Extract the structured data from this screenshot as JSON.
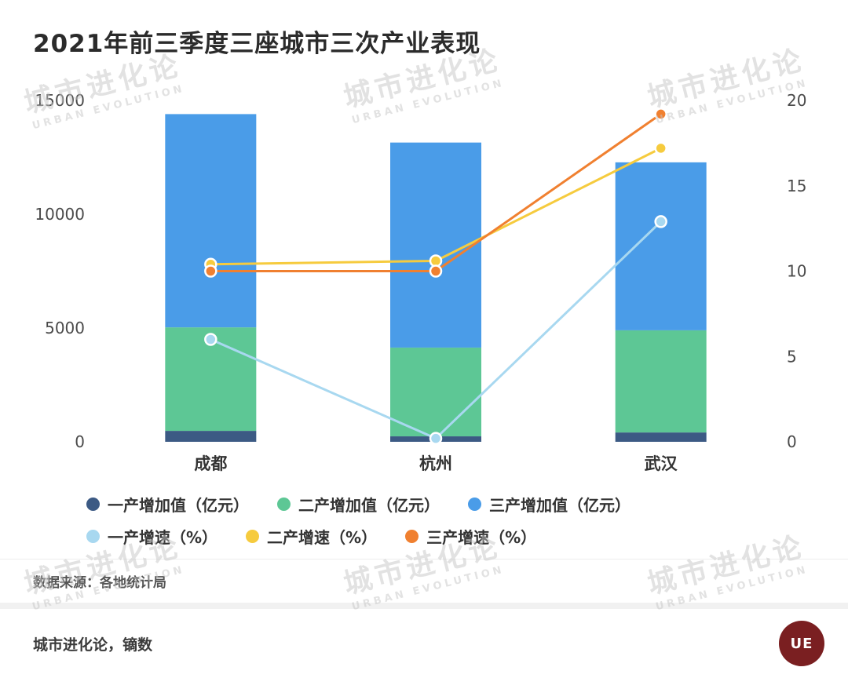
{
  "title": "2021年前三季度三座城市三次产业表现",
  "watermark": {
    "line1": "城市进化论",
    "line2": "URBAN EVOLUTION"
  },
  "chart_data": {
    "type": "combo",
    "subtype": "stacked-bar-with-lines",
    "categories": [
      "成都",
      "杭州",
      "武汉"
    ],
    "bar_series": [
      {
        "name": "一产增加值（亿元）",
        "color": "#3c5a84",
        "axis": "left",
        "values": [
          480,
          240,
          410
        ]
      },
      {
        "name": "二产增加值（亿元）",
        "color": "#5dc795",
        "axis": "left",
        "values": [
          4550,
          3900,
          4490
        ]
      },
      {
        "name": "三产增加值（亿元）",
        "color": "#4a9ce8",
        "axis": "left",
        "values": [
          9370,
          9010,
          7380
        ]
      }
    ],
    "line_series": [
      {
        "name": "一产增速（%）",
        "color": "#a8d8f0",
        "axis": "right",
        "values": [
          6.0,
          0.2,
          12.9
        ]
      },
      {
        "name": "二产增速（%）",
        "color": "#f6cb3e",
        "axis": "right",
        "values": [
          10.4,
          10.6,
          17.2
        ]
      },
      {
        "name": "三产增速（%）",
        "color": "#f08030",
        "axis": "right",
        "values": [
          10.0,
          10.0,
          19.2
        ]
      }
    ],
    "left_axis": {
      "ticks": [
        0,
        5000,
        10000,
        15000
      ],
      "max": 15000
    },
    "right_axis": {
      "ticks": [
        0,
        5,
        10,
        15,
        20
      ],
      "max": 20
    },
    "grid": false,
    "legend_position": "bottom"
  },
  "source": "数据来源：各地统计局",
  "footer": {
    "credit": "城市进化论，镝数",
    "logo_label": "UE"
  }
}
